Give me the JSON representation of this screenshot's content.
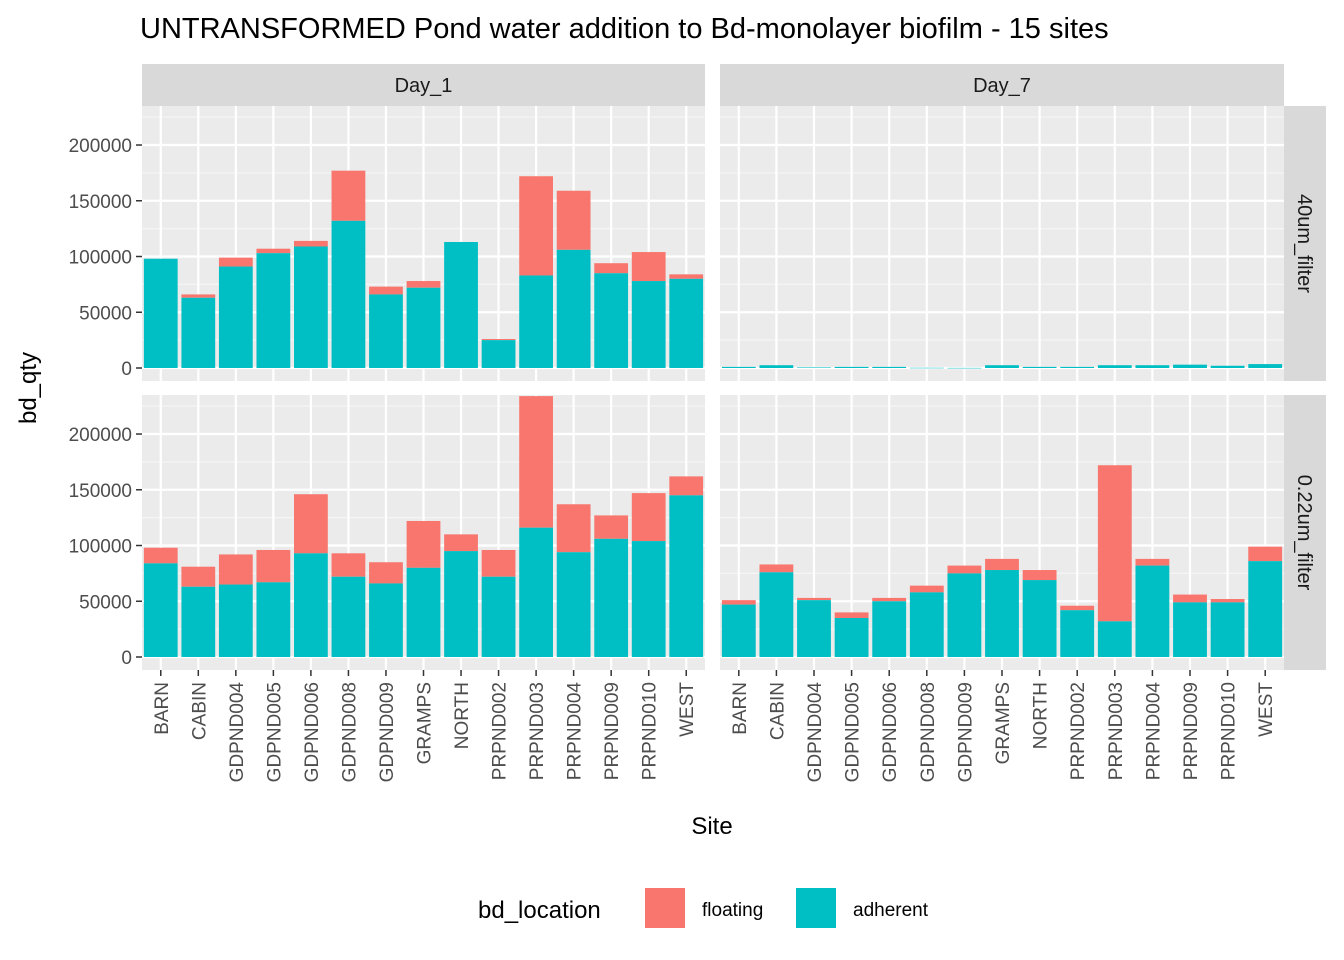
{
  "chart_data": {
    "type": "bar",
    "stacked": true,
    "title": "UNTRANSFORMED Pond water addition to Bd-monolayer biofilm - 15 sites",
    "xlabel": "Site",
    "ylabel": "bd_qty",
    "ylim": [
      0,
      235000
    ],
    "yticks": [
      "0",
      "50000",
      "100000",
      "150000",
      "200000"
    ],
    "grid": true,
    "categories": [
      "BARN",
      "CABIN",
      "GDPND004",
      "GDPND005",
      "GDPND006",
      "GDPND008",
      "GDPND009",
      "GRAMPS",
      "NORTH",
      "PRPND002",
      "PRPND003",
      "PRPND004",
      "PRPND009",
      "PRPND010",
      "WEST"
    ],
    "legend": {
      "title": "bd_location",
      "position": "bottom",
      "items": [
        {
          "label": "floating",
          "color": "#F8766D"
        },
        {
          "label": "adherent",
          "color": "#00BFC4"
        }
      ]
    },
    "column_facets": [
      "Day_1",
      "Day_7"
    ],
    "row_facets": [
      "40um_filter",
      "0.22um_filter"
    ],
    "panels": [
      {
        "col": "Day_1",
        "row": "40um_filter",
        "series": [
          {
            "name": "adherent",
            "values": [
              98000,
              63000,
              91000,
              103000,
              109000,
              132000,
              66000,
              72000,
              113000,
              25000,
              83000,
              106000,
              85000,
              78000,
              80000
            ]
          },
          {
            "name": "floating",
            "values": [
              0,
              3000,
              8000,
              4000,
              5000,
              45000,
              7000,
              6000,
              0,
              1000,
              89000,
              53000,
              9000,
              26000,
              4000
            ]
          }
        ]
      },
      {
        "col": "Day_7",
        "row": "40um_filter",
        "series": [
          {
            "name": "adherent",
            "values": [
              1000,
              2500,
              500,
              1000,
              1000,
              200,
              100,
              2500,
              1000,
              1000,
              2500,
              2500,
              3000,
              2000,
              3500
            ]
          },
          {
            "name": "floating",
            "values": [
              0,
              0,
              0,
              0,
              0,
              0,
              0,
              0,
              0,
              0,
              0,
              0,
              0,
              0,
              0
            ]
          }
        ]
      },
      {
        "col": "Day_1",
        "row": "0.22um_filter",
        "series": [
          {
            "name": "adherent",
            "values": [
              84000,
              63000,
              65000,
              67000,
              93000,
              72000,
              66000,
              80000,
              95000,
              72000,
              116000,
              94000,
              106000,
              104000,
              145000
            ]
          },
          {
            "name": "floating",
            "values": [
              14000,
              18000,
              27000,
              29000,
              53000,
              21000,
              19000,
              42000,
              15000,
              24000,
              118000,
              43000,
              21000,
              43000,
              17000
            ]
          }
        ]
      },
      {
        "col": "Day_7",
        "row": "0.22um_filter",
        "series": [
          {
            "name": "adherent",
            "values": [
              47000,
              76000,
              51000,
              35000,
              50000,
              58000,
              75000,
              78000,
              69000,
              42000,
              32000,
              82000,
              49000,
              49000,
              86000
            ]
          },
          {
            "name": "floating",
            "values": [
              4000,
              7000,
              2000,
              5000,
              3000,
              6000,
              7000,
              10000,
              9000,
              4000,
              140000,
              6000,
              7000,
              3000,
              13000
            ]
          }
        ]
      }
    ]
  }
}
